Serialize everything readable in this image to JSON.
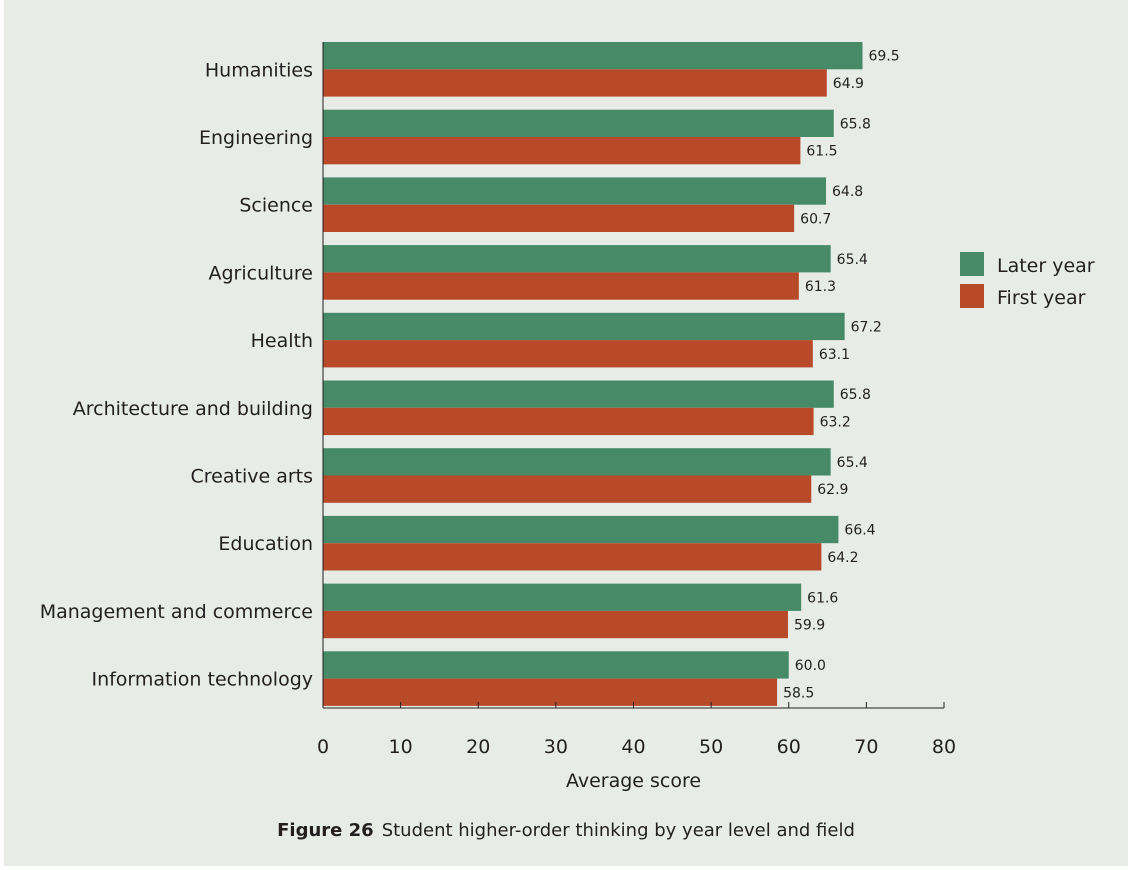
{
  "colors": {
    "later_year": "#468a68",
    "first_year": "#b84a2a",
    "axis": "#231f20"
  },
  "caption": {
    "figure_number": "Figure 26",
    "text": "Student higher-order thinking by year level and field"
  },
  "chart_data": {
    "type": "bar",
    "orientation": "horizontal",
    "categories": [
      "Humanities",
      "Engineering",
      "Science",
      "Agriculture",
      "Health",
      "Architecture and building",
      "Creative arts",
      "Education",
      "Management and commerce",
      "Information technology"
    ],
    "series": [
      {
        "name": "Later year",
        "values": [
          69.5,
          65.8,
          64.8,
          65.4,
          67.2,
          65.8,
          65.4,
          66.4,
          61.6,
          60.0
        ],
        "labels": [
          "69.5",
          "65.8",
          "64.8",
          "65.4",
          "67.2",
          "65.8",
          "65.4",
          "66.4",
          "61.6",
          "60.0"
        ]
      },
      {
        "name": "First year",
        "values": [
          64.9,
          61.5,
          60.7,
          61.3,
          63.1,
          63.2,
          62.9,
          64.2,
          59.9,
          58.5
        ],
        "labels": [
          "64.9",
          "61.5",
          "60.7",
          "61.3",
          "63.1",
          "63.2",
          "62.9",
          "64.2",
          "59.9",
          "58.5"
        ]
      }
    ],
    "xlabel": "Average score",
    "ylabel": "",
    "xlim": [
      0,
      80
    ],
    "xticks": [
      0,
      10,
      20,
      30,
      40,
      50,
      60,
      70,
      80
    ],
    "grid": false,
    "legend_position": "right"
  }
}
